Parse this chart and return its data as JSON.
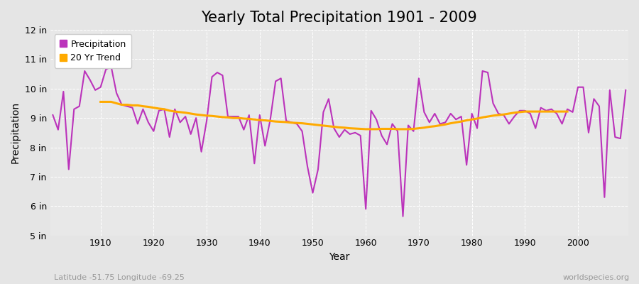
{
  "title": "Yearly Total Precipitation 1901 - 2009",
  "xlabel": "Year",
  "ylabel": "Precipitation",
  "background_color": "#e5e5e5",
  "plot_bg_color": "#e8e8e8",
  "grid_color": "#ffffff",
  "precipitation_color": "#bb33bb",
  "trend_color": "#ffaa00",
  "years": [
    1901,
    1902,
    1903,
    1904,
    1905,
    1906,
    1907,
    1908,
    1909,
    1910,
    1911,
    1912,
    1913,
    1914,
    1915,
    1916,
    1917,
    1918,
    1919,
    1920,
    1921,
    1922,
    1923,
    1924,
    1925,
    1926,
    1927,
    1928,
    1929,
    1930,
    1931,
    1932,
    1933,
    1934,
    1935,
    1936,
    1937,
    1938,
    1939,
    1940,
    1941,
    1942,
    1943,
    1944,
    1945,
    1946,
    1947,
    1948,
    1949,
    1950,
    1951,
    1952,
    1953,
    1954,
    1955,
    1956,
    1957,
    1958,
    1959,
    1960,
    1961,
    1962,
    1963,
    1964,
    1965,
    1966,
    1967,
    1968,
    1969,
    1970,
    1971,
    1972,
    1973,
    1974,
    1975,
    1976,
    1977,
    1978,
    1979,
    1980,
    1981,
    1982,
    1983,
    1984,
    1985,
    1986,
    1987,
    1988,
    1989,
    1990,
    1991,
    1992,
    1993,
    1994,
    1995,
    1996,
    1997,
    1998,
    1999,
    2000,
    2001,
    2002,
    2003,
    2004,
    2005,
    2006,
    2007,
    2008,
    2009
  ],
  "precip": [
    9.1,
    8.6,
    9.9,
    7.25,
    9.3,
    9.4,
    10.6,
    10.3,
    9.95,
    10.05,
    10.65,
    10.75,
    9.85,
    9.45,
    9.4,
    9.35,
    8.8,
    9.3,
    8.85,
    8.55,
    9.25,
    9.3,
    8.35,
    9.3,
    8.85,
    9.05,
    8.45,
    9.0,
    7.85,
    8.9,
    10.4,
    10.55,
    10.45,
    9.05,
    9.05,
    9.05,
    8.6,
    9.1,
    7.45,
    9.1,
    8.05,
    8.95,
    10.25,
    10.35,
    8.9,
    8.85,
    8.8,
    8.55,
    7.35,
    6.45,
    7.25,
    9.2,
    9.65,
    8.65,
    8.35,
    8.6,
    8.45,
    8.5,
    8.4,
    5.9,
    9.25,
    8.95,
    8.4,
    8.1,
    8.8,
    8.55,
    5.65,
    8.75,
    8.55,
    10.35,
    9.2,
    8.85,
    9.15,
    8.8,
    8.85,
    9.15,
    8.95,
    9.05,
    7.4,
    9.15,
    8.65,
    10.6,
    10.55,
    9.5,
    9.15,
    9.1,
    8.8,
    9.05,
    9.25,
    9.25,
    9.15,
    8.65,
    9.35,
    9.25,
    9.3,
    9.15,
    8.8,
    9.3,
    9.2,
    10.05,
    10.05,
    8.5,
    9.65,
    9.4,
    6.3,
    9.95,
    8.35,
    8.3,
    9.95
  ],
  "trend": [
    null,
    null,
    null,
    null,
    null,
    null,
    null,
    null,
    null,
    9.55,
    9.55,
    9.55,
    9.5,
    9.45,
    9.45,
    9.43,
    9.43,
    9.4,
    9.38,
    9.35,
    9.32,
    9.3,
    9.25,
    9.22,
    9.2,
    9.18,
    9.15,
    9.12,
    9.1,
    9.08,
    9.07,
    9.05,
    9.03,
    9.02,
    9.0,
    9.0,
    8.98,
    8.97,
    8.95,
    8.93,
    8.92,
    8.9,
    8.88,
    8.87,
    8.86,
    8.84,
    8.83,
    8.82,
    8.8,
    8.78,
    8.76,
    8.74,
    8.72,
    8.7,
    8.68,
    8.67,
    8.65,
    8.64,
    8.63,
    8.62,
    8.62,
    8.62,
    8.63,
    8.63,
    8.63,
    8.62,
    8.62,
    8.62,
    8.63,
    8.65,
    8.67,
    8.7,
    8.72,
    8.75,
    8.78,
    8.82,
    8.85,
    8.88,
    8.92,
    8.95,
    8.98,
    9.02,
    9.05,
    9.08,
    9.1,
    9.12,
    9.15,
    9.18,
    9.2,
    9.22,
    9.22,
    9.22,
    9.22,
    9.22,
    9.22,
    9.22,
    9.22,
    9.22,
    null,
    null,
    null,
    null,
    null,
    null,
    null,
    null,
    null,
    null
  ],
  "ylim": [
    5,
    12
  ],
  "yticks": [
    5,
    6,
    7,
    8,
    9,
    10,
    11,
    12
  ],
  "ytick_labels": [
    "5 in",
    "6 in",
    "7 in",
    "8 in",
    "9 in",
    "10 in",
    "11 in",
    "12 in"
  ],
  "xticks": [
    1910,
    1920,
    1930,
    1940,
    1950,
    1960,
    1970,
    1980,
    1990,
    2000
  ],
  "subtitle_left": "Latitude -51.75 Longitude -69.25",
  "subtitle_right": "worldspecies.org",
  "legend_labels": [
    "Precipitation",
    "20 Yr Trend"
  ],
  "title_fontsize": 15,
  "axis_label_fontsize": 10,
  "tick_fontsize": 9,
  "figsize": [
    9.0,
    4.0
  ],
  "dpi": 100
}
